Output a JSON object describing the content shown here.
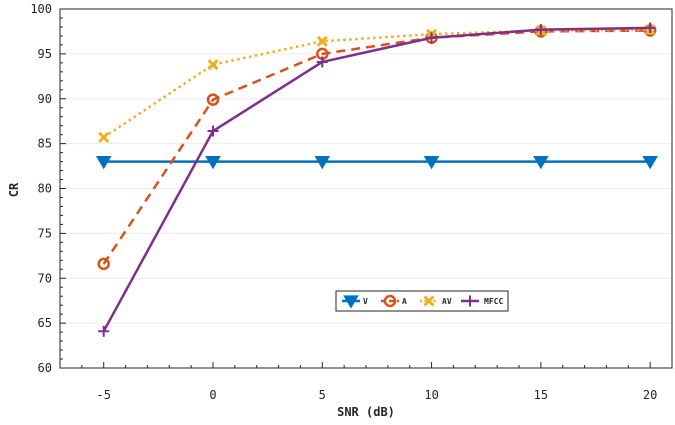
{
  "chart_data": {
    "type": "line",
    "title": "",
    "xlabel": "SNR (dB)",
    "ylabel": "CR",
    "xlim": [
      -7,
      21
    ],
    "ylim": [
      60,
      100
    ],
    "x_ticks": [
      -5,
      0,
      5,
      10,
      15,
      20
    ],
    "y_ticks": [
      60,
      65,
      70,
      75,
      80,
      85,
      90,
      95,
      100
    ],
    "x_tick_labels": [
      "-5",
      "0",
      "5",
      "10",
      "15",
      "20"
    ],
    "y_tick_labels": [
      "60",
      "65",
      "70",
      "75",
      "80",
      "85",
      "90",
      "95",
      "100"
    ],
    "grid": "horizontal",
    "legend_position": "lower-center",
    "x": [
      -5,
      0,
      5,
      10,
      15,
      20
    ],
    "series": [
      {
        "name": "V",
        "values": [
          83.0,
          83.0,
          83.0,
          83.0,
          83.0,
          83.0
        ],
        "color": "#0072bd",
        "line": "solid",
        "marker": "triangle-down"
      },
      {
        "name": "A",
        "values": [
          71.6,
          89.9,
          95.0,
          96.8,
          97.5,
          97.6
        ],
        "color": "#d95319",
        "line": "dashed",
        "marker": "circle"
      },
      {
        "name": "AV",
        "values": [
          85.7,
          93.8,
          96.4,
          97.2,
          97.6,
          97.7
        ],
        "color": "#edb120",
        "line": "dotted",
        "marker": "x"
      },
      {
        "name": "MFCC",
        "values": [
          64.1,
          86.4,
          94.1,
          96.8,
          97.7,
          97.9
        ],
        "color": "#7e2f8e",
        "line": "solid",
        "marker": "plus"
      }
    ]
  }
}
